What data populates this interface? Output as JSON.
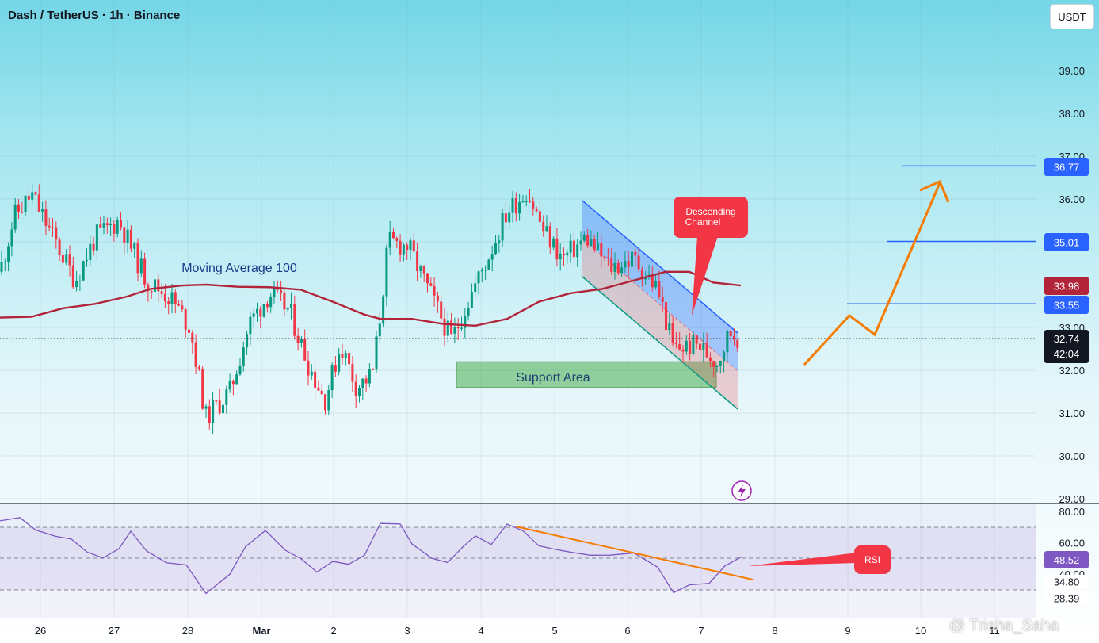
{
  "header": {
    "title": "Dash / TetherUS · 1h · Binance",
    "currency": "USDT"
  },
  "price_axis": {
    "ticks": [
      "39.00",
      "38.00",
      "37.00",
      "36.00",
      "35.00",
      "33.00",
      "32.00",
      "31.00",
      "30.00",
      "29.00"
    ]
  },
  "rsi_axis": {
    "ticks": [
      "80.00",
      "60.00",
      "40.00"
    ]
  },
  "time_axis": {
    "labels": [
      "26",
      "27",
      "28",
      "Mar",
      "2",
      "3",
      "4",
      "5",
      "6",
      "7",
      "8",
      "9",
      "10",
      "11"
    ]
  },
  "annotations": {
    "moving_average": "Moving Average 100",
    "support": "Support Area",
    "channel": "Descending Channel",
    "rsi": "RSI"
  },
  "badges": {
    "target_1": "36.77",
    "target_2": "35.01",
    "ma_value": "33.98",
    "target_3": "33.55",
    "last_price": "32.74",
    "countdown": "42:04",
    "rsi_value": "48.52",
    "rsi_level_1": "34.80",
    "rsi_level_2": "28.39"
  },
  "watermark": "@ Trisha_Saha",
  "colors": {
    "up": "#089981",
    "down": "#f23645",
    "ma": "#b2243a",
    "rsi": "#7e57c2",
    "blue_line": "#2962ff",
    "orange": "#f57c00",
    "support": "#4caf50",
    "callout": "#f23645"
  },
  "chart_data": {
    "type": "candlestick",
    "price_range": [
      28.9,
      40.6
    ],
    "rsi_range": [
      20,
      85
    ],
    "price_series_approx": [
      {
        "x": "26",
        "close": 35.6
      },
      {
        "x": "27",
        "close": 34.1
      },
      {
        "x": "28",
        "close": 30.9
      },
      {
        "x": "Mar",
        "close": 33.8
      },
      {
        "x": "2",
        "close": 31.2
      },
      {
        "x": "2.6",
        "close": 31.9
      },
      {
        "x": "3",
        "close": 34.9
      },
      {
        "x": "4",
        "close": 34.0
      },
      {
        "x": "4.7",
        "close": 36.2
      },
      {
        "x": "6",
        "close": 33.8
      },
      {
        "x": "7",
        "close": 32.2
      },
      {
        "x": "7.5",
        "close": 32.74
      }
    ],
    "ma100_approx": [
      {
        "x": "26",
        "y": 33.1
      },
      {
        "x": "27",
        "y": 33.5
      },
      {
        "x": "28",
        "y": 33.8
      },
      {
        "x": "Mar",
        "y": 33.8
      },
      {
        "x": "2",
        "y": 33.3
      },
      {
        "x": "3",
        "y": 33.1
      },
      {
        "x": "4",
        "y": 33.0
      },
      {
        "x": "5",
        "y": 33.7
      },
      {
        "x": "6",
        "y": 34.2
      },
      {
        "x": "7",
        "y": 34.0
      },
      {
        "x": "7.5",
        "y": 33.98
      }
    ],
    "rsi_approx": [
      {
        "x": "26",
        "y": 76
      },
      {
        "x": "27",
        "y": 50
      },
      {
        "x": "28",
        "y": 28
      },
      {
        "x": "Mar",
        "y": 63
      },
      {
        "x": "2",
        "y": 40
      },
      {
        "x": "3",
        "y": 72
      },
      {
        "x": "4",
        "y": 60
      },
      {
        "x": "4.5",
        "y": 70
      },
      {
        "x": "6",
        "y": 50
      },
      {
        "x": "7",
        "y": 30
      },
      {
        "x": "7.5",
        "y": 48.52
      }
    ],
    "last_price": 32.74,
    "ma100": 33.98,
    "rsi": 48.52,
    "support_zone": [
      31.6,
      32.2
    ],
    "targets": [
      33.55,
      35.01,
      36.77
    ]
  }
}
